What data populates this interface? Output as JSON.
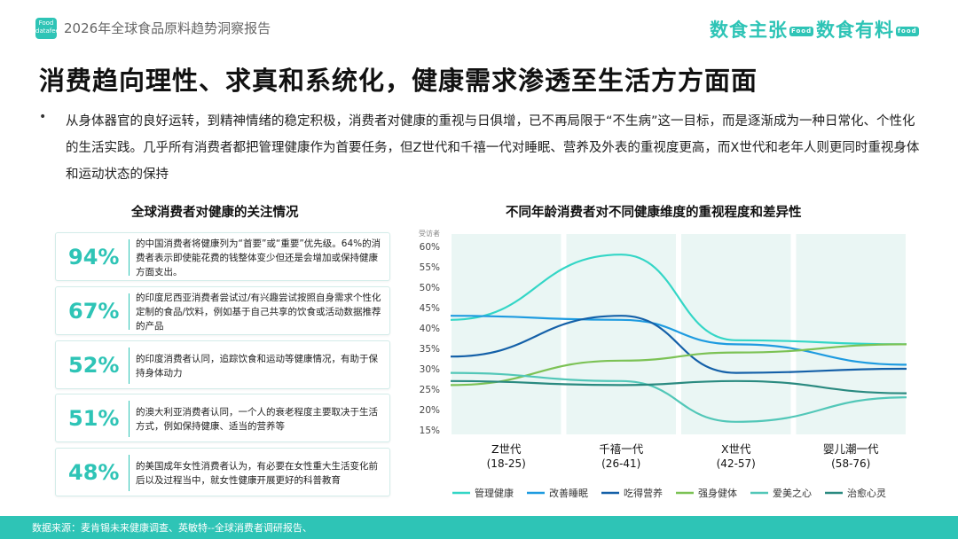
{
  "header": {
    "logo_text": "Food\ndatafeed",
    "report_title": "2026年全球食品原料趋势洞察报告",
    "brand_left": "数食主张",
    "brand_left_badge": "Food",
    "brand_right": "数食有料",
    "brand_right_badge": "food"
  },
  "headline": "消费趋向理性、求真和系统化，健康需求渗透至生活方方面面",
  "intro": {
    "bullet": "•",
    "text": "从身体器官的良好运转，到精神情绪的稳定积极，消费者对健康的重视与日俱增，已不再局限于“不生病”这一目标，而是逐渐成为一种日常化、个性化的生活实践。几乎所有消费者都把管理健康作为首要任务，但Z世代和千禧一代对睡眠、营养及外表的重视度更高，而X世代和老年人则更同时重视身体和运动状态的保持"
  },
  "left_section": {
    "title": "全球消费者对健康的关注情况",
    "stats": [
      {
        "pct": "94%",
        "text": "的中国消费者将健康列为“首要”或“重要”优先级。64%的消费者表示即使能花费的钱整体变少但还是会增加或保持健康方面支出。"
      },
      {
        "pct": "67%",
        "text": "的印度尼西亚消费者尝试过/有兴趣尝试按照自身需求个性化定制的食品/饮料，例如基于自己共享的饮食或活动数据推荐的产品"
      },
      {
        "pct": "52%",
        "text": "的印度消费者认同，追踪饮食和运动等健康情况，有助于保持身体动力"
      },
      {
        "pct": "51%",
        "text": "的澳大利亚消费者认同，一个人的衰老程度主要取决于生活方式，例如保持健康、适当的营养等"
      },
      {
        "pct": "48%",
        "text": "的美国成年女性消费者认为，有必要在女性重大生活变化前后以及过程当中，就女性健康开展更好的科普教育"
      }
    ]
  },
  "chart_data": {
    "type": "line",
    "title": "不同年龄消费者对不同健康维度的重视程度和差异性",
    "ylabel": "受访者",
    "ylim": [
      15,
      60
    ],
    "yticks": [
      "60%",
      "55%",
      "50%",
      "45%",
      "40%",
      "35%",
      "30%",
      "25%",
      "20%",
      "15%"
    ],
    "ytick_values": [
      60,
      55,
      50,
      45,
      40,
      35,
      30,
      25,
      20,
      15
    ],
    "categories": [
      "Z世代",
      "千禧一代",
      "X世代",
      "婴儿潮一代"
    ],
    "category_ranges": [
      "(18-25)",
      "(26-41)",
      "(42-57)",
      "(58-76)"
    ],
    "smooth": true,
    "legend_position": "bottom",
    "series": [
      {
        "name": "管理健康",
        "color": "#33d6c6",
        "values": [
          42,
          58,
          37,
          36
        ]
      },
      {
        "name": "改善睡眠",
        "color": "#1e9be0",
        "values": [
          43,
          42,
          36,
          31
        ]
      },
      {
        "name": "吃得营养",
        "color": "#1460a8",
        "values": [
          33,
          43,
          29,
          30
        ]
      },
      {
        "name": "强身健体",
        "color": "#7cc255",
        "values": [
          26,
          32,
          34,
          36
        ]
      },
      {
        "name": "爱美之心",
        "color": "#52c7b8",
        "values": [
          29,
          27,
          17,
          23
        ]
      },
      {
        "name": "治愈心灵",
        "color": "#2a8a80",
        "values": [
          27,
          26,
          27,
          24
        ]
      }
    ]
  },
  "footer": {
    "source": "数据来源：麦肯锡未来健康调查、英敏特--全球消费者调研报告、"
  }
}
